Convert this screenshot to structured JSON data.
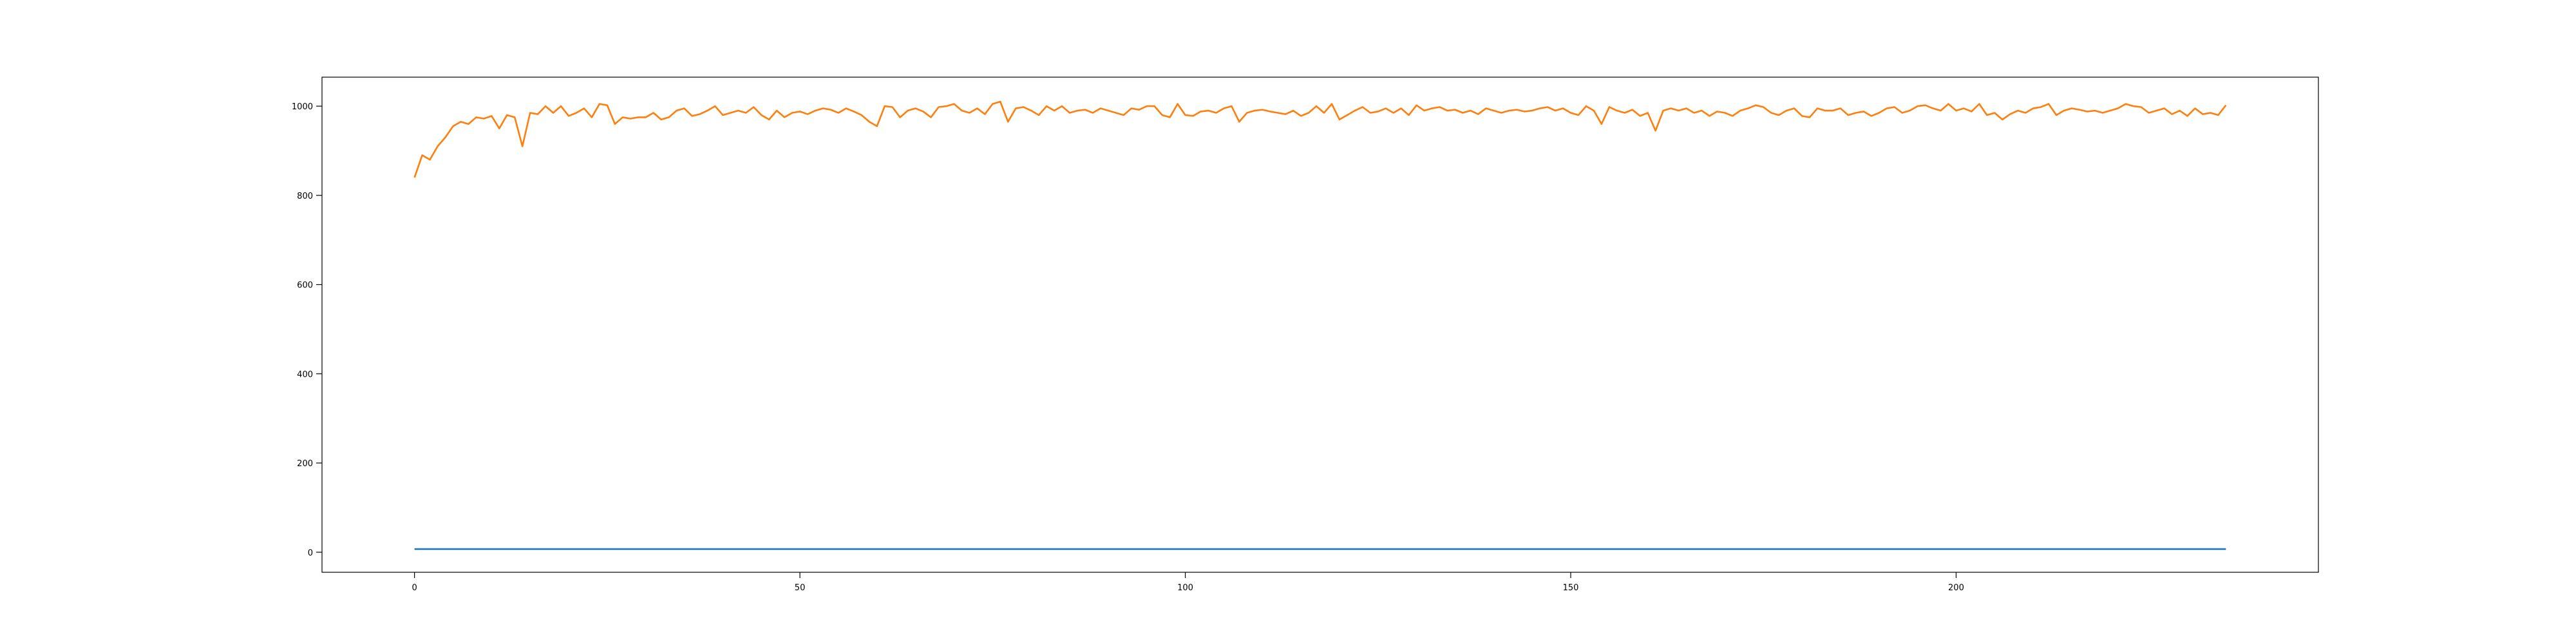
{
  "chart_data": {
    "type": "line",
    "title": "",
    "xlabel": "",
    "ylabel": "",
    "xlim": [
      -12,
      247
    ],
    "ylim": [
      -45,
      1065
    ],
    "x_ticks": [
      0,
      50,
      100,
      150,
      200
    ],
    "y_ticks": [
      0,
      200,
      400,
      600,
      800,
      1000
    ],
    "grid": false,
    "legend": "none",
    "series": [
      {
        "color": "#1f77b4",
        "x_start": 0,
        "x_step": 1,
        "values": [
          7,
          7,
          7,
          7,
          7,
          7,
          7,
          7,
          7,
          7,
          7,
          7,
          7,
          7,
          7,
          7,
          7,
          7,
          7,
          7,
          7,
          7,
          7,
          7,
          7,
          7,
          7,
          7,
          7,
          7,
          7,
          7,
          7,
          7,
          7,
          7,
          7,
          7,
          7,
          7,
          7,
          7,
          7,
          7,
          7,
          7,
          7,
          7,
          7,
          7,
          7,
          7,
          7,
          7,
          7,
          7,
          7,
          7,
          7,
          7,
          7,
          7,
          7,
          7,
          7,
          7,
          7,
          7,
          7,
          7,
          7,
          7,
          7,
          7,
          7,
          7,
          7,
          7,
          7,
          7,
          7,
          7,
          7,
          7,
          7,
          7,
          7,
          7,
          7,
          7,
          7,
          7,
          7,
          7,
          7,
          7,
          7,
          7,
          7,
          7,
          7,
          7,
          7,
          7,
          7,
          7,
          7,
          7,
          7,
          7,
          7,
          7,
          7,
          7,
          7,
          7,
          7,
          7,
          7,
          7,
          7,
          7,
          7,
          7,
          7,
          7,
          7,
          7,
          7,
          7,
          7,
          7,
          7,
          7,
          7,
          7,
          7,
          7,
          7,
          7,
          7,
          7,
          7,
          7,
          7,
          7,
          7,
          7,
          7,
          7,
          7,
          7,
          7,
          7,
          7,
          7,
          7,
          7,
          7,
          7,
          7,
          7,
          7,
          7,
          7,
          7,
          7,
          7,
          7,
          7,
          7,
          7,
          7,
          7,
          7,
          7,
          7,
          7,
          7,
          7,
          7,
          7,
          7,
          7,
          7,
          7,
          7,
          7,
          7,
          7,
          7,
          7,
          7,
          7,
          7,
          7,
          7,
          7,
          7,
          7,
          7,
          7,
          7,
          7,
          7,
          7,
          7,
          7,
          7,
          7,
          7,
          7,
          7,
          7,
          7,
          7,
          7,
          7,
          7,
          7,
          7,
          7,
          7,
          7,
          7,
          7,
          7,
          7,
          7,
          7,
          7,
          7,
          7,
          7,
          7,
          7
        ]
      },
      {
        "color": "#ff7f0e",
        "x_start": 0,
        "x_step": 1,
        "values": [
          840,
          890,
          880,
          910,
          930,
          955,
          965,
          960,
          975,
          972,
          978,
          950,
          980,
          975,
          910,
          985,
          982,
          1000,
          985,
          1000,
          978,
          985,
          995,
          975,
          1005,
          1002,
          960,
          975,
          972,
          975,
          975,
          985,
          970,
          975,
          990,
          995,
          978,
          982,
          990,
          1000,
          980,
          985,
          990,
          985,
          998,
          980,
          970,
          990,
          975,
          985,
          988,
          982,
          990,
          995,
          992,
          985,
          995,
          988,
          980,
          965,
          955,
          1000,
          998,
          975,
          990,
          995,
          988,
          975,
          998,
          1000,
          1005,
          990,
          985,
          995,
          982,
          1005,
          1010,
          965,
          995,
          998,
          990,
          980,
          1000,
          990,
          1000,
          985,
          990,
          992,
          985,
          995,
          990,
          985,
          980,
          995,
          992,
          1000,
          1000,
          980,
          975,
          1005,
          980,
          978,
          988,
          990,
          985,
          995,
          1000,
          965,
          985,
          990,
          992,
          988,
          985,
          982,
          990,
          978,
          985,
          1000,
          985,
          1005,
          970,
          980,
          990,
          998,
          985,
          988,
          995,
          985,
          995,
          980,
          1002,
          990,
          995,
          998,
          990,
          992,
          985,
          990,
          982,
          995,
          990,
          985,
          990,
          992,
          988,
          990,
          995,
          998,
          990,
          995,
          985,
          980,
          1000,
          990,
          960,
          998,
          990,
          985,
          992,
          978,
          985,
          945,
          990,
          995,
          990,
          995,
          985,
          990,
          978,
          988,
          985,
          978,
          990,
          995,
          1002,
          998,
          985,
          980,
          990,
          995,
          978,
          975,
          995,
          990,
          990,
          995,
          980,
          985,
          988,
          978,
          985,
          995,
          998,
          985,
          990,
          1000,
          1002,
          995,
          990,
          1005,
          990,
          995,
          988,
          1005,
          980,
          985,
          970,
          982,
          990,
          985,
          995,
          998,
          1005,
          980,
          990,
          995,
          992,
          988,
          990,
          985,
          990,
          995,
          1005,
          1000,
          998,
          985,
          990,
          995,
          982,
          990,
          978,
          995,
          982,
          985,
          980,
          1002
        ]
      }
    ]
  }
}
